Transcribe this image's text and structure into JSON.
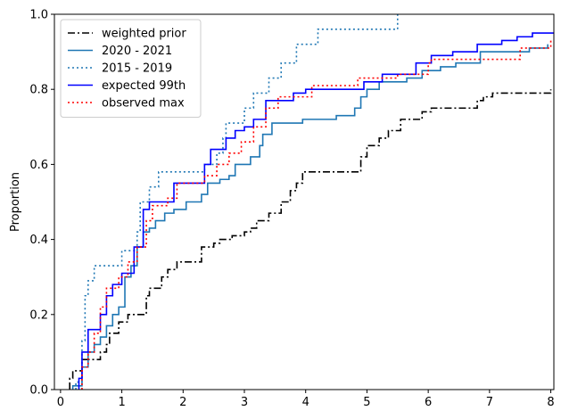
{
  "chart_data": {
    "type": "line",
    "step": true,
    "ylabel": "Proportion",
    "xlabel": "",
    "title": "",
    "xlim": [
      -0.1,
      8.05
    ],
    "ylim": [
      0.0,
      1.0
    ],
    "xticks": [
      0,
      1,
      2,
      3,
      4,
      5,
      6,
      7,
      8
    ],
    "yticks": [
      0.0,
      0.2,
      0.4,
      0.6,
      0.8,
      1.0
    ],
    "xtick_labels": [
      "0",
      "1",
      "2",
      "3",
      "4",
      "5",
      "6",
      "7",
      "8"
    ],
    "ytick_labels": [
      "0.0",
      "0.2",
      "0.4",
      "0.6",
      "0.8",
      "1.0"
    ],
    "grid": false,
    "legend_position": "top-left",
    "series": [
      {
        "name": "weighted prior",
        "color": "#000000",
        "dash": "dashdot",
        "points": [
          [
            0.15,
            0.0
          ],
          [
            0.15,
            0.03
          ],
          [
            0.2,
            0.05
          ],
          [
            0.35,
            0.08
          ],
          [
            0.65,
            0.1
          ],
          [
            0.75,
            0.12
          ],
          [
            0.8,
            0.15
          ],
          [
            0.95,
            0.18
          ],
          [
            1.1,
            0.2
          ],
          [
            1.4,
            0.25
          ],
          [
            1.45,
            0.27
          ],
          [
            1.65,
            0.3
          ],
          [
            1.75,
            0.32
          ],
          [
            1.9,
            0.34
          ],
          [
            2.3,
            0.38
          ],
          [
            2.5,
            0.39
          ],
          [
            2.6,
            0.4
          ],
          [
            2.8,
            0.41
          ],
          [
            3.0,
            0.42
          ],
          [
            3.1,
            0.43
          ],
          [
            3.2,
            0.45
          ],
          [
            3.4,
            0.47
          ],
          [
            3.6,
            0.5
          ],
          [
            3.75,
            0.53
          ],
          [
            3.85,
            0.55
          ],
          [
            3.95,
            0.58
          ],
          [
            4.9,
            0.62
          ],
          [
            5.0,
            0.65
          ],
          [
            5.2,
            0.67
          ],
          [
            5.35,
            0.69
          ],
          [
            5.55,
            0.72
          ],
          [
            5.9,
            0.74
          ],
          [
            6.05,
            0.75
          ],
          [
            6.8,
            0.77
          ],
          [
            6.9,
            0.78
          ],
          [
            7.05,
            0.79
          ],
          [
            8.0,
            0.8
          ]
        ]
      },
      {
        "name": "2020 - 2021",
        "color": "#1f77b4",
        "dash": "solid",
        "points": [
          [
            0.2,
            0.0
          ],
          [
            0.2,
            0.01
          ],
          [
            0.35,
            0.06
          ],
          [
            0.45,
            0.1
          ],
          [
            0.55,
            0.12
          ],
          [
            0.65,
            0.14
          ],
          [
            0.75,
            0.17
          ],
          [
            0.85,
            0.2
          ],
          [
            0.95,
            0.22
          ],
          [
            1.05,
            0.3
          ],
          [
            1.15,
            0.33
          ],
          [
            1.25,
            0.38
          ],
          [
            1.35,
            0.42
          ],
          [
            1.45,
            0.43
          ],
          [
            1.55,
            0.45
          ],
          [
            1.7,
            0.47
          ],
          [
            1.85,
            0.48
          ],
          [
            2.05,
            0.5
          ],
          [
            2.3,
            0.52
          ],
          [
            2.4,
            0.55
          ],
          [
            2.6,
            0.56
          ],
          [
            2.75,
            0.57
          ],
          [
            2.85,
            0.6
          ],
          [
            3.1,
            0.62
          ],
          [
            3.25,
            0.65
          ],
          [
            3.3,
            0.68
          ],
          [
            3.45,
            0.71
          ],
          [
            3.95,
            0.72
          ],
          [
            4.5,
            0.73
          ],
          [
            4.8,
            0.75
          ],
          [
            4.9,
            0.78
          ],
          [
            5.0,
            0.8
          ],
          [
            5.2,
            0.82
          ],
          [
            5.65,
            0.83
          ],
          [
            5.9,
            0.85
          ],
          [
            6.2,
            0.86
          ],
          [
            6.45,
            0.87
          ],
          [
            6.85,
            0.9
          ],
          [
            7.65,
            0.91
          ],
          [
            7.95,
            0.92
          ]
        ]
      },
      {
        "name": "2015 - 2019",
        "color": "#1f77b4",
        "dash": "dotted",
        "points": [
          [
            0.25,
            0.0
          ],
          [
            0.25,
            0.02
          ],
          [
            0.35,
            0.13
          ],
          [
            0.4,
            0.25
          ],
          [
            0.45,
            0.29
          ],
          [
            0.55,
            0.33
          ],
          [
            1.0,
            0.37
          ],
          [
            1.25,
            0.42
          ],
          [
            1.3,
            0.5
          ],
          [
            1.45,
            0.54
          ],
          [
            1.6,
            0.58
          ],
          [
            2.35,
            0.6
          ],
          [
            2.55,
            0.63
          ],
          [
            2.65,
            0.67
          ],
          [
            2.7,
            0.71
          ],
          [
            3.0,
            0.75
          ],
          [
            3.15,
            0.79
          ],
          [
            3.4,
            0.83
          ],
          [
            3.6,
            0.87
          ],
          [
            3.85,
            0.92
          ],
          [
            4.2,
            0.96
          ],
          [
            5.5,
            1.0
          ]
        ]
      },
      {
        "name": "expected 99th",
        "color": "#0000ff",
        "dash": "solid",
        "points": [
          [
            0.3,
            0.0
          ],
          [
            0.3,
            0.03
          ],
          [
            0.35,
            0.1
          ],
          [
            0.45,
            0.16
          ],
          [
            0.65,
            0.2
          ],
          [
            0.75,
            0.25
          ],
          [
            0.85,
            0.28
          ],
          [
            1.0,
            0.31
          ],
          [
            1.2,
            0.38
          ],
          [
            1.35,
            0.48
          ],
          [
            1.45,
            0.5
          ],
          [
            1.85,
            0.55
          ],
          [
            2.35,
            0.6
          ],
          [
            2.45,
            0.64
          ],
          [
            2.7,
            0.67
          ],
          [
            2.85,
            0.69
          ],
          [
            3.0,
            0.7
          ],
          [
            3.15,
            0.72
          ],
          [
            3.35,
            0.77
          ],
          [
            3.8,
            0.79
          ],
          [
            4.0,
            0.8
          ],
          [
            4.95,
            0.82
          ],
          [
            5.25,
            0.84
          ],
          [
            5.8,
            0.87
          ],
          [
            6.05,
            0.89
          ],
          [
            6.4,
            0.9
          ],
          [
            6.8,
            0.92
          ],
          [
            7.2,
            0.93
          ],
          [
            7.45,
            0.94
          ],
          [
            7.7,
            0.95
          ],
          [
            8.05,
            0.95
          ]
        ]
      },
      {
        "name": "observed max",
        "color": "#ff0000",
        "dash": "dotted",
        "points": [
          [
            0.35,
            0.0
          ],
          [
            0.35,
            0.06
          ],
          [
            0.45,
            0.1
          ],
          [
            0.55,
            0.15
          ],
          [
            0.65,
            0.22
          ],
          [
            0.75,
            0.27
          ],
          [
            0.95,
            0.3
          ],
          [
            1.1,
            0.34
          ],
          [
            1.25,
            0.38
          ],
          [
            1.4,
            0.45
          ],
          [
            1.5,
            0.49
          ],
          [
            1.75,
            0.51
          ],
          [
            1.9,
            0.55
          ],
          [
            2.35,
            0.57
          ],
          [
            2.55,
            0.6
          ],
          [
            2.75,
            0.63
          ],
          [
            2.95,
            0.66
          ],
          [
            3.15,
            0.7
          ],
          [
            3.35,
            0.75
          ],
          [
            3.55,
            0.78
          ],
          [
            4.1,
            0.81
          ],
          [
            4.85,
            0.83
          ],
          [
            5.5,
            0.84
          ],
          [
            6.0,
            0.87
          ],
          [
            6.05,
            0.88
          ],
          [
            7.5,
            0.91
          ],
          [
            8.0,
            0.93
          ]
        ]
      }
    ]
  }
}
